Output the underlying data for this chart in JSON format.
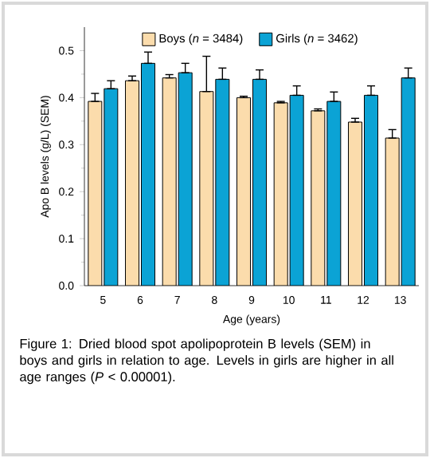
{
  "chart_data": {
    "type": "bar",
    "categories": [
      "5",
      "6",
      "7",
      "8",
      "9",
      "10",
      "11",
      "12",
      "13"
    ],
    "series": [
      {
        "name": "Boys (*n* = 3484)",
        "color": "#fbdcac",
        "values": [
          0.392,
          0.436,
          0.442,
          0.413,
          0.4,
          0.389,
          0.372,
          0.348,
          0.314
        ],
        "errors": [
          [
            0.392,
            0.409
          ],
          [
            0.436,
            0.446
          ],
          [
            0.442,
            0.449
          ],
          [
            0.413,
            0.488
          ],
          [
            0.4,
            0.403
          ],
          [
            0.389,
            0.392
          ],
          [
            0.372,
            0.376
          ],
          [
            0.348,
            0.356
          ],
          [
            0.314,
            0.332
          ]
        ]
      },
      {
        "name": "Girls (*n* = 3462)",
        "color": "#0ba3d5",
        "values": [
          0.419,
          0.473,
          0.453,
          0.439,
          0.439,
          0.405,
          0.392,
          0.405,
          0.442
        ],
        "errors": [
          [
            0.419,
            0.436
          ],
          [
            0.473,
            0.497
          ],
          [
            0.453,
            0.473
          ],
          [
            0.439,
            0.463
          ],
          [
            0.439,
            0.459
          ],
          [
            0.405,
            0.425
          ],
          [
            0.392,
            0.412
          ],
          [
            0.405,
            0.425
          ],
          [
            0.442,
            0.463
          ]
        ]
      }
    ],
    "xlabel": "Age (years)",
    "ylabel": "Apo B levels (g/L) (SEM)",
    "ylim": [
      0,
      0.55
    ],
    "yticks": [
      {
        "value": 0,
        "label": "0.0"
      },
      {
        "value": 0.1,
        "label": "0.1"
      },
      {
        "value": 0.2,
        "label": "0.2"
      },
      {
        "value": 0.3,
        "label": "0.3"
      },
      {
        "value": 0.4,
        "label": "0.4"
      },
      {
        "value": 0.5,
        "label": "0.5"
      }
    ],
    "legend": "top",
    "grid": false,
    "annotations": [
      "Figure 1: Dried blood spot apolipoprotein B levels (SEM) in boys and girls in relation to age. Levels in girls are higher in all age ranges (*P* < 0.00001)."
    ]
  }
}
